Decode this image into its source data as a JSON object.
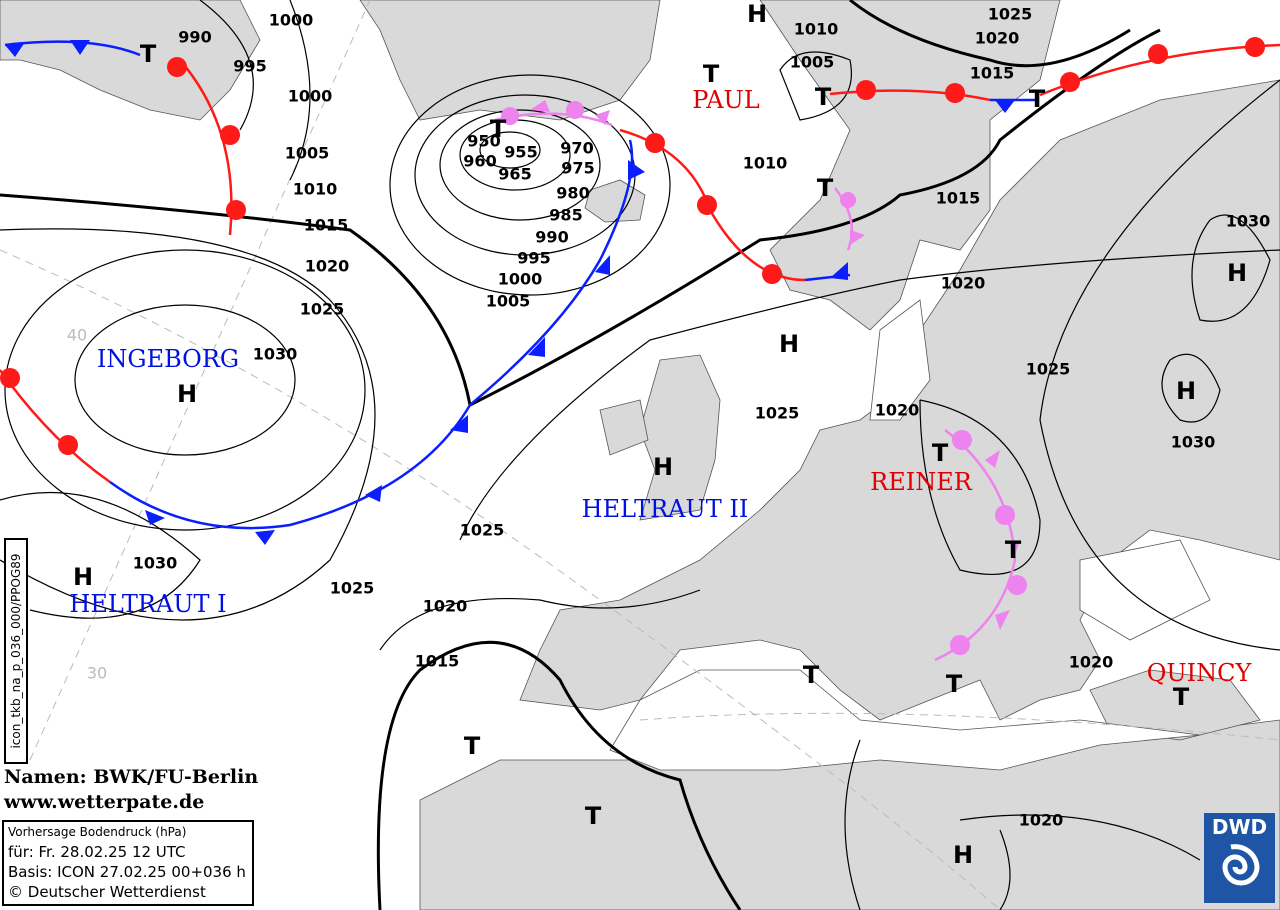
{
  "title_box": {
    "line1": "Vorhersage Bodendruck (hPa)",
    "line2": "für:  Fr. 28.02.25  12 UTC",
    "line3": "Basis: ICON  27.02.25 00+036 h",
    "line4": "© Deutscher Wetterdienst"
  },
  "credit": {
    "names": "Namen: BWK/FU-Berlin",
    "url": "www.wetterpate.de"
  },
  "product_code": "icon_tkb_na_p_036_000/PPOG89",
  "logo": {
    "text": "DWD",
    "color": "#1f55a5"
  },
  "latitude_labels": [
    "40",
    "30"
  ],
  "isobar_labels": [
    "990",
    "1000",
    "995",
    "1000",
    "1005",
    "1010",
    "1015",
    "1020",
    "1025",
    "1030",
    "950",
    "955",
    "960",
    "965",
    "970",
    "975",
    "980",
    "985",
    "990",
    "995",
    "1000",
    "1005",
    "1010",
    "1005",
    "1025",
    "1020",
    "1015",
    "1010",
    "1015",
    "1020",
    "1030",
    "1025",
    "1030",
    "1020",
    "1025",
    "1025",
    "1030",
    "1025",
    "1020",
    "1015",
    "1020",
    "1020"
  ],
  "pressure_centers": [
    "T",
    "H",
    "T",
    "T",
    "T",
    "T",
    "T",
    "H",
    "H",
    "H",
    "H",
    "H",
    "T",
    "T",
    "H",
    "T",
    "T",
    "T",
    "T",
    "T",
    "H"
  ],
  "system_names": [
    {
      "name": "PAUL",
      "color": "#e00000"
    },
    {
      "name": "INGEBORG",
      "color": "#0010e0"
    },
    {
      "name": "HELTRAUT II",
      "color": "#0010e0"
    },
    {
      "name": "REINER",
      "color": "#e00000"
    },
    {
      "name": "HELTRAUT I",
      "color": "#0010e0"
    },
    {
      "name": "QUINCY",
      "color": "#e00000"
    }
  ],
  "colors": {
    "land": "#d9d9d9",
    "warm_front": "#ff1a1a",
    "cold_front": "#0a1eff",
    "occlusion": "#ee82ee"
  }
}
